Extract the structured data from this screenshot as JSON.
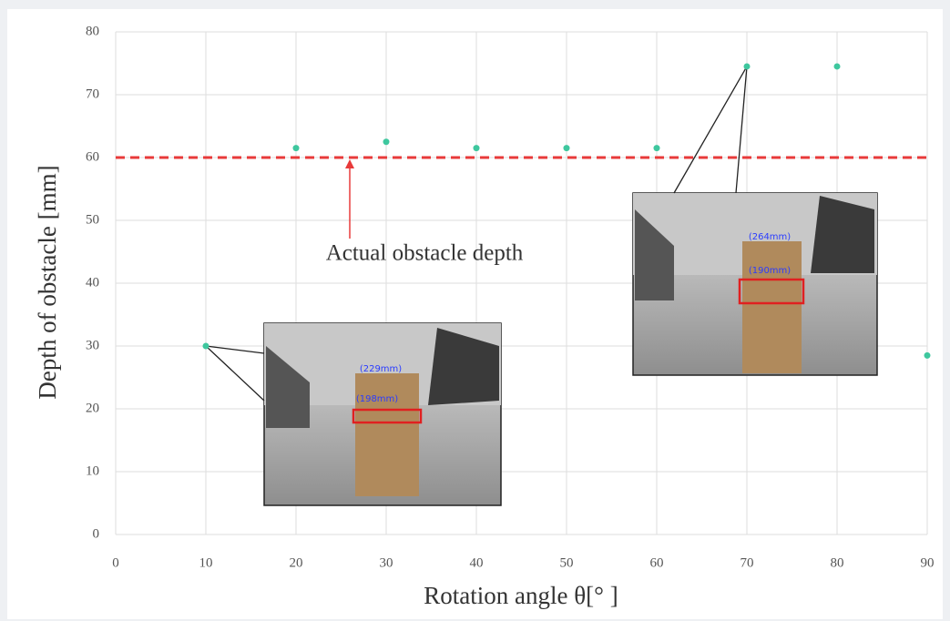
{
  "chart_data": {
    "type": "scatter",
    "x_label": "Rotation angle θ[°  ]",
    "y_label": "Depth of obstacle  [mm]",
    "x": [
      10,
      20,
      30,
      40,
      50,
      60,
      70,
      80,
      90
    ],
    "values": [
      30,
      61.5,
      62.5,
      61.5,
      61.5,
      61.5,
      74.5,
      74.5,
      28.5
    ],
    "color": "#3ec79e",
    "xlim": [
      0,
      90
    ],
    "xticks": [
      0,
      10,
      20,
      30,
      40,
      50,
      60,
      70,
      80,
      90
    ],
    "ylim": [
      0,
      80
    ],
    "yticks": [
      0,
      10,
      20,
      30,
      40,
      50,
      60,
      70,
      80
    ],
    "grid": true,
    "reference_line": {
      "value": 60,
      "label": "Actual obstacle depth",
      "color": "#e83a3a"
    },
    "insets": [
      {
        "labels": [
          "(229mm)",
          "(198mm)"
        ]
      },
      {
        "labels": [
          "(264mm)",
          "(190mm)"
        ]
      }
    ]
  }
}
